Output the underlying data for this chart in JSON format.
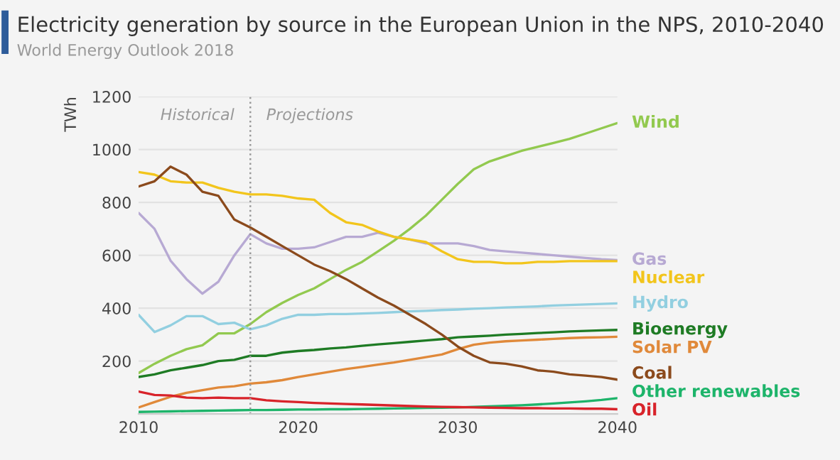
{
  "chart_data": {
    "type": "line",
    "title": "Electricity generation by source in the European Union in the NPS, 2010-2040",
    "subtitle": "World Energy Outlook 2018",
    "ylabel": "TWh",
    "x": [
      2010,
      2011,
      2012,
      2013,
      2014,
      2015,
      2016,
      2017,
      2018,
      2019,
      2020,
      2021,
      2022,
      2023,
      2024,
      2025,
      2026,
      2027,
      2028,
      2029,
      2030,
      2031,
      2032,
      2033,
      2034,
      2035,
      2036,
      2037,
      2038,
      2039,
      2040
    ],
    "xlim": [
      2010,
      2040
    ],
    "xticks": [
      2010,
      2020,
      2030,
      2040
    ],
    "ylim": [
      0,
      1200
    ],
    "yticks": [
      200,
      400,
      600,
      800,
      1000,
      1200
    ],
    "grid": "y",
    "marker": "none",
    "line_style": "solid",
    "ref_lines": [
      {
        "axis": "x",
        "value": 2017,
        "line_style": "dotted",
        "color": "#999999"
      }
    ],
    "annotations": [
      "Historical",
      "Projections"
    ],
    "series": [
      {
        "name": "Wind",
        "color": "#92c94f",
        "values": [
          155,
          190,
          220,
          245,
          260,
          305,
          305,
          340,
          385,
          420,
          450,
          475,
          510,
          545,
          575,
          615,
          655,
          700,
          750,
          810,
          870,
          925,
          955,
          975,
          995,
          1010,
          1025,
          1040,
          1060,
          1080,
          1100
        ]
      },
      {
        "name": "Gas",
        "color": "#b7a9d3",
        "values": [
          760,
          700,
          580,
          510,
          455,
          500,
          600,
          680,
          645,
          625,
          625,
          630,
          650,
          670,
          670,
          685,
          670,
          660,
          645,
          645,
          645,
          635,
          620,
          615,
          610,
          605,
          600,
          595,
          590,
          585,
          582
        ]
      },
      {
        "name": "Nuclear",
        "color": "#f2c51c",
        "values": [
          915,
          905,
          880,
          875,
          875,
          855,
          840,
          830,
          830,
          825,
          815,
          810,
          760,
          725,
          715,
          690,
          670,
          660,
          650,
          615,
          585,
          575,
          575,
          570,
          570,
          575,
          575,
          578,
          578,
          578,
          578
        ]
      },
      {
        "name": "Hydro",
        "color": "#92cfe0",
        "values": [
          375,
          310,
          335,
          370,
          370,
          340,
          345,
          320,
          335,
          360,
          375,
          375,
          378,
          378,
          380,
          382,
          385,
          388,
          390,
          393,
          395,
          398,
          400,
          403,
          405,
          407,
          410,
          412,
          414,
          416,
          418
        ]
      },
      {
        "name": "Bioenergy",
        "color": "#1e7b24",
        "values": [
          140,
          150,
          165,
          175,
          185,
          200,
          205,
          220,
          220,
          232,
          238,
          242,
          248,
          252,
          258,
          263,
          268,
          273,
          278,
          283,
          290,
          293,
          296,
          300,
          303,
          306,
          309,
          312,
          314,
          316,
          318
        ]
      },
      {
        "name": "Solar PV",
        "color": "#e0893a",
        "values": [
          25,
          45,
          65,
          80,
          90,
          100,
          105,
          115,
          120,
          128,
          140,
          150,
          160,
          170,
          178,
          187,
          195,
          205,
          215,
          225,
          245,
          262,
          270,
          275,
          278,
          281,
          284,
          287,
          289,
          290,
          292
        ]
      },
      {
        "name": "Coal",
        "color": "#8b4a1c",
        "values": [
          860,
          880,
          935,
          905,
          840,
          825,
          735,
          705,
          670,
          635,
          600,
          565,
          540,
          510,
          475,
          440,
          410,
          375,
          340,
          300,
          255,
          220,
          195,
          190,
          180,
          165,
          160,
          150,
          145,
          140,
          130
        ]
      },
      {
        "name": "Other renewables",
        "color": "#1db46a",
        "values": [
          8,
          9,
          10,
          11,
          12,
          13,
          14,
          15,
          15,
          16,
          17,
          17,
          18,
          18,
          19,
          20,
          21,
          22,
          23,
          24,
          25,
          27,
          29,
          31,
          33,
          36,
          40,
          44,
          48,
          53,
          60
        ]
      },
      {
        "name": "Oil",
        "color": "#d8232a",
        "values": [
          85,
          72,
          70,
          62,
          60,
          62,
          60,
          60,
          52,
          48,
          45,
          42,
          40,
          38,
          36,
          34,
          32,
          30,
          28,
          27,
          26,
          25,
          24,
          23,
          22,
          22,
          21,
          21,
          20,
          20,
          18
        ]
      }
    ]
  }
}
